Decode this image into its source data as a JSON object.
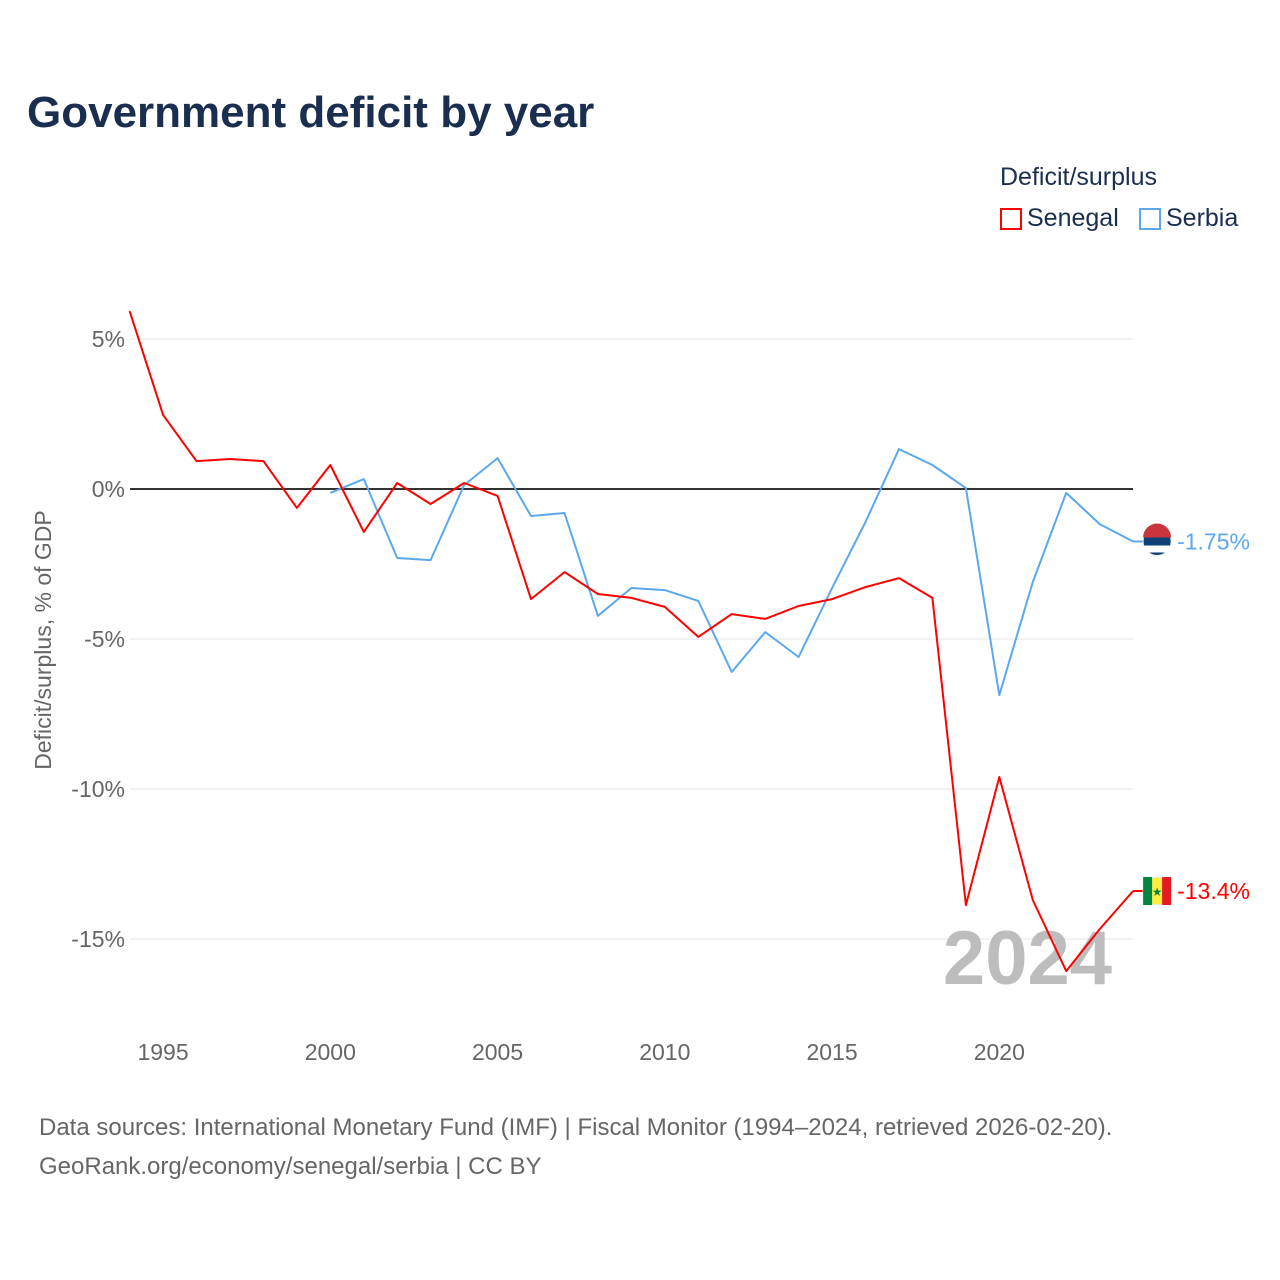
{
  "chart_data": {
    "type": "line",
    "title": "Government deficit by year",
    "ylabel": "Deficit/surplus, % of GDP",
    "xlabel": "",
    "legend_title": "Deficit/surplus",
    "legend_position": "top-right",
    "ylim": [
      -17.5,
      6.5
    ],
    "xlim": [
      1994,
      2024
    ],
    "y_ticks": [
      5,
      0,
      -5,
      -10,
      -15
    ],
    "y_tick_labels": [
      "5%",
      "0%",
      "-5%",
      "-10%",
      "-15%"
    ],
    "x_ticks": [
      1995,
      2000,
      2005,
      2010,
      2015,
      2020
    ],
    "x_tick_labels": [
      "1995",
      "2000",
      "2005",
      "2010",
      "2015",
      "2020"
    ],
    "year_watermark": "2024",
    "series": [
      {
        "name": "Senegal",
        "color": "#ff0000",
        "end_label": "-13.4%",
        "x": [
          1994,
          1995,
          1996,
          1997,
          1998,
          1999,
          2000,
          2001,
          2002,
          2003,
          2004,
          2005,
          2006,
          2007,
          2008,
          2009,
          2010,
          2011,
          2012,
          2013,
          2014,
          2015,
          2016,
          2017,
          2018,
          2019,
          2020,
          2021,
          2022,
          2023,
          2024
        ],
        "values": [
          5.93,
          2.47,
          0.93,
          1.0,
          0.93,
          -0.63,
          0.8,
          -1.43,
          0.2,
          -0.5,
          0.2,
          -0.23,
          -3.67,
          -2.77,
          -3.5,
          -3.63,
          -3.93,
          -4.93,
          -4.17,
          -4.33,
          -3.9,
          -3.67,
          -3.27,
          -2.97,
          -3.63,
          -13.87,
          -9.6,
          -13.7,
          -16.07,
          -14.67,
          -13.4
        ]
      },
      {
        "name": "Serbia",
        "color": "#5ba8ec",
        "end_label": "-1.75%",
        "x": [
          2000,
          2001,
          2002,
          2003,
          2004,
          2005,
          2006,
          2007,
          2008,
          2009,
          2010,
          2011,
          2012,
          2013,
          2014,
          2015,
          2016,
          2017,
          2018,
          2019,
          2020,
          2021,
          2022,
          2023,
          2024
        ],
        "values": [
          -0.13,
          0.33,
          -2.3,
          -2.37,
          0.13,
          1.03,
          -0.9,
          -0.8,
          -4.23,
          -3.3,
          -3.37,
          -3.73,
          -6.1,
          -4.77,
          -5.6,
          -3.3,
          -1.1,
          1.33,
          0.8,
          0.03,
          -6.87,
          -3.1,
          -0.13,
          -1.17,
          -1.75
        ]
      }
    ]
  },
  "source": {
    "line1": "Data sources: International Monetary Fund (IMF) | Fiscal Monitor (1994–2024, retrieved 2026-02-20).",
    "line2": "GeoRank.org/economy/senegal/serbia | CC BY"
  }
}
